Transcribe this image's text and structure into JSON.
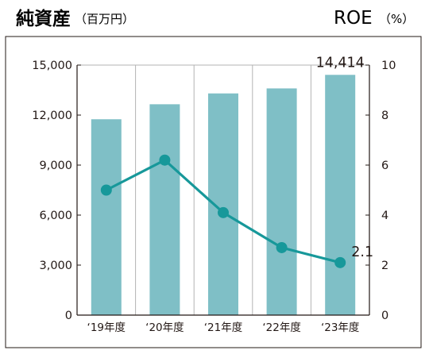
{
  "chart_data": {
    "type": "bar",
    "title": "純資産",
    "title_unit": "（百万円）",
    "right_title": "ROE",
    "right_title_unit": "（%）",
    "categories": [
      "‘19年度",
      "‘20年度",
      "‘21年度",
      "‘22年度",
      "‘23年度"
    ],
    "series": [
      {
        "type": "bar",
        "axis": "left",
        "values": [
          11750,
          12650,
          13300,
          13600,
          14414
        ]
      },
      {
        "type": "line",
        "axis": "right",
        "values": [
          5.0,
          6.2,
          4.1,
          2.7,
          2.1
        ]
      }
    ],
    "left_axis": {
      "ylim": [
        0,
        15000
      ],
      "ticks": [
        "0",
        "3,000",
        "6,000",
        "9,000",
        "12,000",
        "15,000"
      ]
    },
    "right_axis": {
      "ylim": [
        0,
        10
      ],
      "ticks": [
        "0",
        "2",
        "4",
        "6",
        "8",
        "10"
      ]
    },
    "data_labels": {
      "bar_last": "14,414",
      "line_last": "2.1"
    },
    "grid": "vertical",
    "colors": {
      "bar": "#7fbfc6",
      "line": "#17989a",
      "grid": "#b3b3b3",
      "axis": "#231815"
    }
  }
}
